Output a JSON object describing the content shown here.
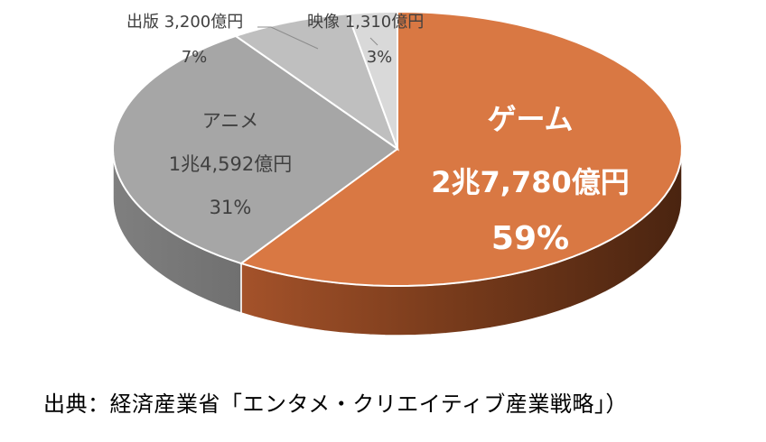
{
  "chart_data": {
    "type": "pie",
    "title": "",
    "slices": [
      {
        "name": "ゲーム",
        "amount_label": "2兆7,780億円",
        "value": 27780,
        "percent_label": "59%",
        "color": "#D97843"
      },
      {
        "name": "アニメ",
        "amount_label": "1兆4,592億円",
        "value": 14592,
        "percent_label": "31%",
        "color": "#A6A6A6"
      },
      {
        "name": "出版",
        "amount_label": "3,200億円",
        "value": 3200,
        "percent_label": "7%",
        "color": "#BFBFBF"
      },
      {
        "name": "映像",
        "amount_label": "1,310億円",
        "value": 1310,
        "percent_label": "3%",
        "color": "#D9D9D9"
      }
    ]
  },
  "source_note": "出典：経済産業省「エンタメ・クリエイティブ産業戦略」）"
}
